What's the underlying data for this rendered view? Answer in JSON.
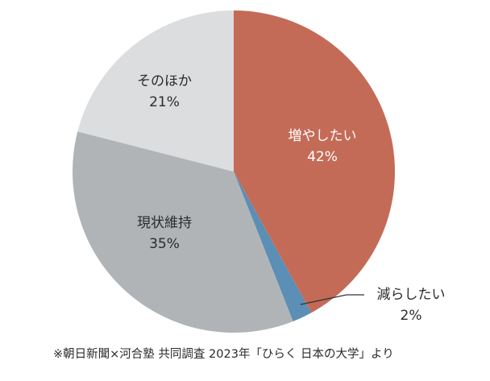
{
  "chart_data": {
    "type": "pie",
    "title": "",
    "start_angle": "12 o'clock, clockwise",
    "slices": [
      {
        "label": "増やしたい",
        "value": 42,
        "display": "42%",
        "color": "#c46b57",
        "text_color": "#ffffff"
      },
      {
        "label": "減らしたい",
        "value": 2,
        "display": "2%",
        "color": "#5b8fb5",
        "text_color": "#2b2b2b",
        "callout": true
      },
      {
        "label": "現状維持",
        "value": 35,
        "display": "35%",
        "color": "#b1b4b7",
        "text_color": "#2b2b2b"
      },
      {
        "label": "そのほか",
        "value": 21,
        "display": "21%",
        "color": "#dcdddf",
        "text_color": "#2b2b2b"
      }
    ],
    "source": "※朝日新聞×河合塾 共同調査 2023年「ひらく 日本の大学」より"
  },
  "labels": {
    "increase": {
      "name": "増やしたい",
      "pct": "42%"
    },
    "decrease": {
      "name": "減らしたい",
      "pct": "2%"
    },
    "maintain": {
      "name": "現状維持",
      "pct": "35%"
    },
    "other": {
      "name": "そのほか",
      "pct": "21%"
    }
  },
  "source": "※朝日新聞×河合塾 共同調査 2023年「ひらく 日本の大学」より"
}
